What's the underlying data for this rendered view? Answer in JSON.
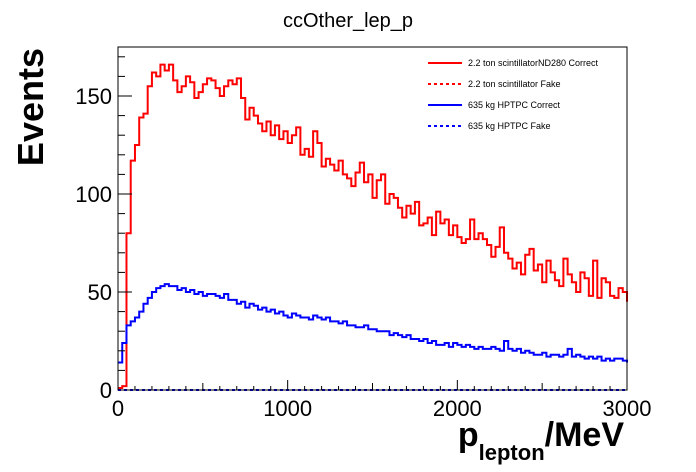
{
  "chart_data": {
    "type": "line",
    "title": "ccOther_lep_p",
    "ylabel": "Events",
    "xlabel_main": "p",
    "xlabel_sub": "lepton",
    "xlabel_unit": "/MeV",
    "xlim": [
      0,
      3000
    ],
    "ylim": [
      0,
      175
    ],
    "x_ticks": [
      0,
      1000,
      2000,
      3000
    ],
    "y_ticks": [
      0,
      50,
      100,
      150
    ],
    "bin_width": 25,
    "legend_position": "top-right",
    "series": [
      {
        "name": "2.2 ton scintillatorND280 Correct",
        "color": "#ff0000",
        "style": "solid",
        "values": [
          1,
          2,
          80,
          117,
          125,
          139,
          141,
          155,
          162,
          160,
          166,
          163,
          166,
          158,
          152,
          155,
          160,
          157,
          149,
          152,
          156,
          159,
          158,
          154,
          150,
          155,
          158,
          156,
          159,
          149,
          138,
          144,
          140,
          136,
          132,
          137,
          130,
          135,
          128,
          132,
          126,
          130,
          134,
          120,
          123,
          119,
          132,
          126,
          114,
          118,
          115,
          112,
          117,
          110,
          108,
          104,
          111,
          116,
          106,
          110,
          98,
          107,
          110,
          95,
          100,
          98,
          93,
          88,
          94,
          90,
          96,
          84,
          85,
          88,
          79,
          91,
          85,
          87,
          79,
          84,
          78,
          75,
          77,
          87,
          77,
          80,
          77,
          74,
          68,
          73,
          83,
          70,
          67,
          62,
          65,
          59,
          69,
          72,
          61,
          64,
          55,
          66,
          60,
          56,
          53,
          67,
          59,
          55,
          50,
          60,
          57,
          48,
          66,
          47,
          57,
          55,
          48,
          47,
          52,
          50,
          45
        ]
      },
      {
        "name": "2.2 ton scintillator Fake",
        "color": "#ff0000",
        "style": "dotted",
        "values": [
          0,
          0,
          0,
          0,
          0,
          0,
          0,
          0,
          0,
          0,
          0,
          0,
          0,
          0,
          0,
          0,
          0,
          0,
          0,
          0,
          0,
          0,
          0,
          0,
          0,
          0,
          0,
          0,
          0,
          0,
          0,
          0,
          0,
          0,
          0,
          0,
          0,
          0,
          0,
          0,
          0,
          0,
          0,
          0,
          0,
          0,
          0,
          0,
          0,
          0,
          0,
          0,
          0,
          0,
          0,
          0,
          0,
          0,
          0,
          0,
          0,
          0,
          0,
          0,
          0,
          0,
          0,
          0,
          0,
          0,
          0,
          0,
          0,
          0,
          0,
          0,
          0,
          0,
          0,
          0,
          0,
          0,
          0,
          0,
          0,
          0,
          0,
          0,
          0,
          0,
          0,
          0,
          0,
          0,
          0,
          0,
          0,
          0,
          0,
          0,
          0,
          0,
          0,
          0,
          0,
          0,
          0,
          0,
          0,
          0,
          0,
          0,
          0,
          0,
          0,
          0,
          0,
          0,
          0,
          0
        ]
      },
      {
        "name": "635 kg HPTPC Correct",
        "color": "#0000ff",
        "style": "solid",
        "values": [
          14,
          24,
          33,
          35,
          37,
          40,
          44,
          47,
          50,
          52,
          53,
          54,
          53,
          53,
          51,
          52,
          50,
          51,
          49,
          50,
          48,
          49,
          49,
          48,
          47,
          49,
          46,
          46,
          44,
          45,
          42,
          44,
          43,
          41,
          42,
          40,
          41,
          39,
          40,
          38,
          37,
          39,
          38,
          37,
          37,
          36,
          38,
          37,
          36,
          37,
          35,
          35,
          34,
          35,
          33,
          33,
          32,
          32,
          33,
          31,
          31,
          30,
          30,
          30,
          28,
          29,
          28,
          27,
          28,
          26,
          26,
          25,
          26,
          24,
          25,
          23,
          23,
          24,
          22,
          24,
          23,
          22,
          23,
          22,
          21,
          22,
          21,
          21,
          22,
          21,
          20,
          25,
          21,
          20,
          21,
          19,
          20,
          19,
          18,
          18,
          19,
          17,
          18,
          18,
          17,
          18,
          21,
          17,
          18,
          17,
          16,
          17,
          16,
          17,
          15,
          16,
          15,
          16,
          16,
          15,
          14
        ]
      },
      {
        "name": "635 kg HPTPC Fake",
        "color": "#0000ff",
        "style": "dotted",
        "values": [
          0,
          0,
          0,
          0,
          0,
          0,
          0,
          0,
          0,
          0,
          0,
          0,
          0,
          0,
          0,
          0,
          0,
          0,
          0,
          0,
          0,
          0,
          0,
          0,
          0,
          0,
          0,
          0,
          0,
          0,
          0,
          0,
          0,
          0,
          0,
          0,
          0,
          0,
          0,
          0,
          0,
          0,
          0,
          0,
          0,
          0,
          0,
          0,
          0,
          0,
          0,
          0,
          0,
          0,
          0,
          0,
          0,
          0,
          0,
          0,
          0,
          0,
          0,
          0,
          0,
          0,
          0,
          0,
          0,
          0,
          0,
          0,
          0,
          0,
          0,
          0,
          0,
          0,
          0,
          0,
          0,
          0,
          0,
          0,
          0,
          0,
          0,
          0,
          0,
          0,
          0,
          0,
          0,
          0,
          0,
          0,
          0,
          0,
          0,
          0,
          0,
          0,
          0,
          0,
          0,
          0,
          0,
          0,
          0,
          0,
          0,
          0,
          0,
          0,
          0,
          0,
          0,
          0,
          0,
          0
        ]
      }
    ]
  }
}
